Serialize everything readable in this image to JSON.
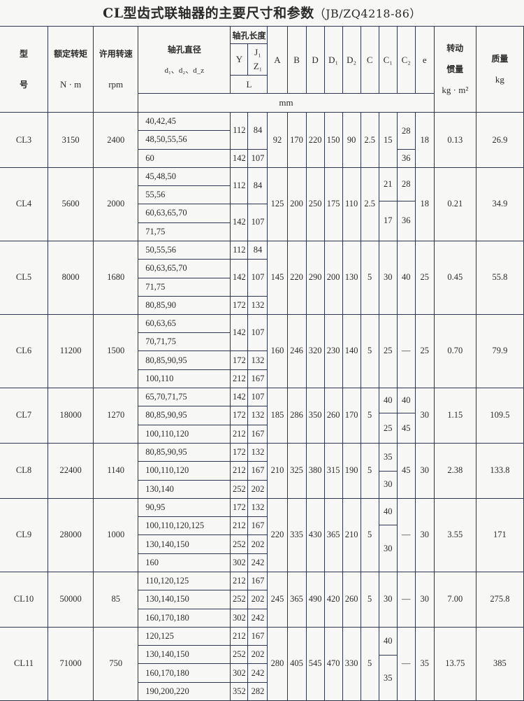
{
  "title": "CL型齿式联轴器的主要尺寸和参数",
  "title_code": "（JB/ZQ4218-86）",
  "header": {
    "model_1": "型",
    "model_2": "号",
    "torque": "额定转矩",
    "torque_unit": "N · m",
    "speed": "许用转速",
    "speed_unit": "rpm",
    "bore": "轴孔直径",
    "bore_sub": "d₁、d₂、d_z",
    "length": "轴孔长度",
    "Y": "Y",
    "J1": "J₁",
    "Z1": "Z₁",
    "L": "L",
    "A": "A",
    "B": "B",
    "D": "D",
    "D1": "D₁",
    "D2": "D₂",
    "C": "C",
    "C1": "C₁",
    "C2": "C₂",
    "e": "e",
    "inertia_1": "转动",
    "inertia_2": "惯量",
    "inertia_unit": "kg · m²",
    "mass": "质量",
    "mass_unit": "kg",
    "mm": "mm"
  },
  "models": [
    {
      "model": "CL3",
      "torque": "3150",
      "speed": "2400",
      "bores": [
        "40,42,45",
        "48,50,55,56",
        "60"
      ],
      "lengths": [
        {
          "Y": "112",
          "J1": "84",
          "rows": 2
        },
        {
          "Y": "142",
          "J1": "107",
          "rows": 1
        }
      ],
      "A": "92",
      "B": "170",
      "D": "220",
      "D1": "150",
      "D2": "90",
      "C": "2.5",
      "C1": [
        "15"
      ],
      "C2": [
        "28",
        "36"
      ],
      "e": "18",
      "inertia": "0.13",
      "mass": "26.9"
    },
    {
      "model": "CL4",
      "torque": "5600",
      "speed": "2000",
      "bores": [
        "45,48,50",
        "55,56",
        "60,63,65,70",
        "71,75"
      ],
      "lengths": [
        {
          "Y": "112",
          "J1": "84",
          "rows": 2
        },
        {
          "Y": "142",
          "J1": "107",
          "rows": 2
        }
      ],
      "A": "125",
      "B": "200",
      "D": "250",
      "D1": "175",
      "D2": "110",
      "C": "2.5",
      "C1": [
        "21",
        "17"
      ],
      "C2": [
        "28",
        "36"
      ],
      "e": "18",
      "inertia": "0.21",
      "mass": "34.9"
    },
    {
      "model": "CL5",
      "torque": "8000",
      "speed": "1680",
      "bores": [
        "50,55,56",
        "60,63,65,70",
        "71,75",
        "80,85,90"
      ],
      "lengths": [
        {
          "Y": "112",
          "J1": "84",
          "rows": 1
        },
        {
          "Y": "142",
          "J1": "107",
          "rows": 2
        },
        {
          "Y": "172",
          "J1": "132",
          "rows": 1
        }
      ],
      "A": "145",
      "B": "220",
      "D": "290",
      "D1": "200",
      "D2": "130",
      "C": "5",
      "C1": [
        "30"
      ],
      "C2": [
        "40"
      ],
      "e": "25",
      "inertia": "0.45",
      "mass": "55.8"
    },
    {
      "model": "CL6",
      "torque": "11200",
      "speed": "1500",
      "bores": [
        "60,63,65",
        "70,71,75",
        "80,85,90,95",
        "100,110"
      ],
      "lengths": [
        {
          "Y": "142",
          "J1": "107",
          "rows": 2
        },
        {
          "Y": "172",
          "J1": "132",
          "rows": 1
        },
        {
          "Y": "212",
          "J1": "167",
          "rows": 1
        }
      ],
      "A": "160",
      "B": "246",
      "D": "320",
      "D1": "230",
      "D2": "140",
      "C": "5",
      "C1": [
        "25"
      ],
      "C2": [
        "—"
      ],
      "e": "25",
      "inertia": "0.70",
      "mass": "79.9"
    },
    {
      "model": "CL7",
      "torque": "18000",
      "speed": "1270",
      "bores": [
        "65,70,71,75",
        "80,85,90,95",
        "100,110,120"
      ],
      "lengths": [
        {
          "Y": "142",
          "J1": "107",
          "rows": 1
        },
        {
          "Y": "172",
          "J1": "132",
          "rows": 1
        },
        {
          "Y": "212",
          "J1": "167",
          "rows": 1
        }
      ],
      "A": "185",
      "B": "286",
      "D": "350",
      "D1": "260",
      "D2": "170",
      "C": "5",
      "C1": [
        "40",
        "25"
      ],
      "C2": [
        "40",
        "45"
      ],
      "e": "30",
      "inertia": "1.15",
      "mass": "109.5"
    },
    {
      "model": "CL8",
      "torque": "22400",
      "speed": "1140",
      "bores": [
        "80,85,90,95",
        "100,110,120",
        "130,140"
      ],
      "lengths": [
        {
          "Y": "172",
          "J1": "132",
          "rows": 1
        },
        {
          "Y": "212",
          "J1": "167",
          "rows": 1
        },
        {
          "Y": "252",
          "J1": "202",
          "rows": 1
        }
      ],
      "A": "210",
      "B": "325",
      "D": "380",
      "D1": "315",
      "D2": "190",
      "C": "5",
      "C1": [
        "35",
        "30"
      ],
      "C2": [
        "45"
      ],
      "e": "30",
      "inertia": "2.38",
      "mass": "133.8"
    },
    {
      "model": "CL9",
      "torque": "28000",
      "speed": "1000",
      "bores": [
        "90,95",
        "100,110,120,125",
        "130,140,150",
        "160"
      ],
      "lengths": [
        {
          "Y": "172",
          "J1": "132",
          "rows": 1
        },
        {
          "Y": "212",
          "J1": "167",
          "rows": 1
        },
        {
          "Y": "252",
          "J1": "202",
          "rows": 1
        },
        {
          "Y": "302",
          "J1": "242",
          "rows": 1
        }
      ],
      "A": "220",
      "B": "335",
      "D": "430",
      "D1": "365",
      "D2": "210",
      "C": "5",
      "C1": [
        "40",
        "30"
      ],
      "C2": [
        "—"
      ],
      "e": "30",
      "inertia": "3.55",
      "mass": "171"
    },
    {
      "model": "CL10",
      "torque": "50000",
      "speed": "85",
      "bores": [
        "110,120,125",
        "130,140,150",
        "160,170,180"
      ],
      "lengths": [
        {
          "Y": "212",
          "J1": "167",
          "rows": 1
        },
        {
          "Y": "252",
          "J1": "202",
          "rows": 1
        },
        {
          "Y": "302",
          "J1": "242",
          "rows": 1
        }
      ],
      "A": "245",
      "B": "365",
      "D": "490",
      "D1": "420",
      "D2": "260",
      "C": "5",
      "C1": [
        "30"
      ],
      "C2": [
        "—"
      ],
      "e": "30",
      "inertia": "7.00",
      "mass": "275.8"
    },
    {
      "model": "CL11",
      "torque": "71000",
      "speed": "750",
      "bores": [
        "120,125",
        "130,140,150",
        "160,170,180",
        "190,200,220"
      ],
      "lengths": [
        {
          "Y": "212",
          "J1": "167",
          "rows": 1
        },
        {
          "Y": "252",
          "J1": "202",
          "rows": 1
        },
        {
          "Y": "302",
          "J1": "242",
          "rows": 1
        },
        {
          "Y": "352",
          "J1": "282",
          "rows": 1
        }
      ],
      "A": "280",
      "B": "405",
      "D": "545",
      "D1": "470",
      "D2": "330",
      "C": "5",
      "C1": [
        "40",
        "35"
      ],
      "C2": [
        "—"
      ],
      "e": "35",
      "inertia": "13.75",
      "mass": "385"
    }
  ]
}
